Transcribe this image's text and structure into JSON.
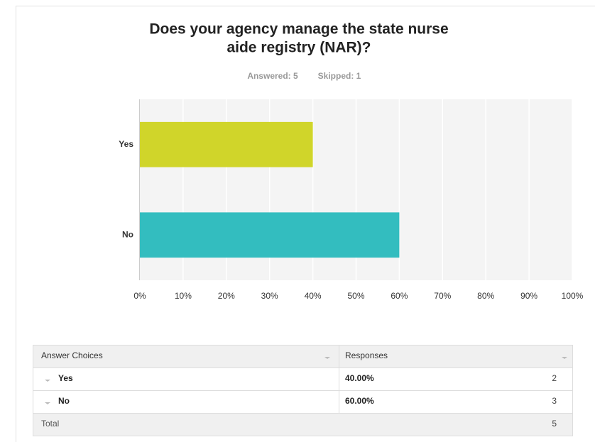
{
  "chart_data": {
    "type": "bar",
    "orientation": "horizontal",
    "title": [
      "Does your agency manage the state nurse",
      "aide registry (NAR)?"
    ],
    "subtitle": [
      "Answered: 5",
      "Skipped: 1"
    ],
    "categories": [
      "Yes",
      "No"
    ],
    "values": [
      40,
      60
    ],
    "colors": [
      "#d0d52a",
      "#33bdbf"
    ],
    "xlim": [
      0,
      100
    ],
    "xticks": [
      {
        "value": 0,
        "label": "0%"
      },
      {
        "value": 10,
        "label": "10%"
      },
      {
        "value": 20,
        "label": "20%"
      },
      {
        "value": 30,
        "label": "30%"
      },
      {
        "value": 40,
        "label": "40%"
      },
      {
        "value": 50,
        "label": "50%"
      },
      {
        "value": 60,
        "label": "60%"
      },
      {
        "value": 70,
        "label": "70%"
      },
      {
        "value": 80,
        "label": "80%"
      },
      {
        "value": 90,
        "label": "90%"
      },
      {
        "value": 100,
        "label": "100%"
      }
    ],
    "grid": true
  },
  "table": {
    "headers": [
      "Answer Choices",
      "Responses"
    ],
    "rows": [
      [
        "Yes",
        "40.00%",
        2
      ],
      [
        "No",
        "60.00%",
        3
      ]
    ],
    "total": [
      "Total",
      5
    ]
  }
}
